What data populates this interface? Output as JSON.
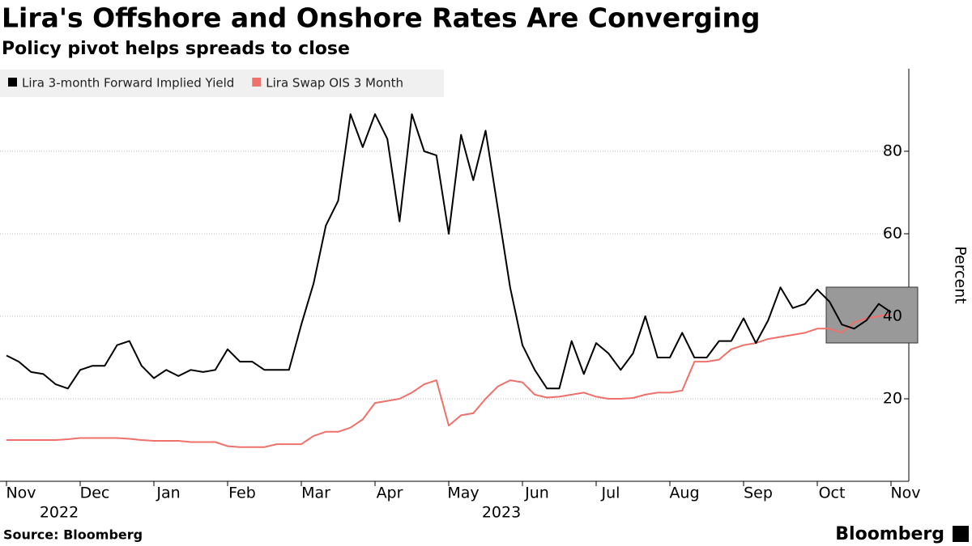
{
  "chart_data": {
    "type": "line",
    "title": "Lira's Offshore and Onshore Rates Are Converging",
    "subtitle": "Policy pivot helps spreads to close",
    "y_label": "Percent",
    "source": "Source: Bloomberg",
    "brand": "Bloomberg",
    "categories": [
      "Nov",
      null,
      null,
      null,
      null,
      null,
      "Dec",
      null,
      null,
      null,
      null,
      null,
      "Jan",
      null,
      null,
      null,
      null,
      null,
      "Feb",
      null,
      null,
      null,
      null,
      null,
      "Mar",
      null,
      null,
      null,
      null,
      null,
      "Apr",
      null,
      null,
      null,
      null,
      null,
      "May",
      null,
      null,
      null,
      null,
      null,
      "Jun",
      null,
      null,
      null,
      null,
      null,
      "Jul",
      null,
      null,
      null,
      null,
      null,
      "Aug",
      null,
      null,
      null,
      null,
      null,
      "Sep",
      null,
      null,
      null,
      null,
      null,
      "Oct",
      null,
      null,
      null,
      null,
      null,
      "Nov"
    ],
    "years": [
      null,
      null,
      null,
      null,
      null,
      null,
      "2022",
      null,
      null,
      null,
      null,
      null,
      null,
      null,
      null,
      null,
      null,
      null,
      null,
      null,
      null,
      null,
      null,
      null,
      null,
      null,
      null,
      null,
      null,
      null,
      null,
      null,
      null,
      null,
      null,
      null,
      null,
      null,
      null,
      null,
      null,
      null,
      "2023",
      null,
      null,
      null,
      null,
      null,
      null,
      null,
      null,
      null,
      null,
      null,
      null,
      null,
      null,
      null,
      null,
      null,
      null,
      null,
      null,
      null,
      null,
      null,
      null,
      null,
      null,
      null,
      null,
      null,
      null
    ],
    "series": [
      {
        "name": "Lira 3-month Forward Implied Yield",
        "color": "#000000",
        "values": [
          30.5,
          29,
          26.5,
          26,
          23.5,
          22.5,
          27,
          28,
          28,
          33,
          34,
          28,
          25,
          27,
          25.5,
          27,
          26.5,
          27,
          32,
          29,
          29,
          27,
          27,
          27,
          38,
          48,
          62,
          68,
          89,
          81,
          89,
          83,
          63,
          89,
          80,
          79,
          60,
          84,
          73,
          85,
          66,
          47,
          33,
          27,
          22.5,
          22.5,
          34,
          26,
          33.5,
          31,
          27,
          31,
          40,
          30,
          30,
          36,
          30,
          30,
          34,
          34,
          39.5,
          33.5,
          39,
          47,
          42,
          43,
          46.5,
          43.5,
          38,
          37,
          39,
          43,
          41
        ]
      },
      {
        "name": "Lira Swap OIS 3 Month",
        "color": "#f0706a",
        "values": [
          10,
          10,
          10,
          10,
          10,
          10.2,
          10.5,
          10.5,
          10.5,
          10.5,
          10.3,
          10,
          9.8,
          9.8,
          9.8,
          9.5,
          9.5,
          9.5,
          8.5,
          8.3,
          8.3,
          8.3,
          9,
          9,
          9,
          11,
          12,
          12,
          13,
          15,
          19,
          19.5,
          20,
          21.5,
          23.5,
          24.5,
          13.5,
          16,
          16.5,
          20,
          23,
          24.5,
          24,
          21,
          20.3,
          20.5,
          21,
          21.5,
          20.5,
          20,
          20,
          20.2,
          21,
          21.5,
          21.5,
          22,
          29,
          29,
          29.5,
          32,
          33,
          33.5,
          34.5,
          35,
          35.5,
          36,
          37,
          37,
          36,
          38.5,
          39.5,
          40,
          40.5
        ]
      }
    ],
    "ylim": [
      0,
      100
    ],
    "yticks": [
      20,
      40,
      60,
      80
    ],
    "grid": true,
    "legend": "top-left"
  }
}
